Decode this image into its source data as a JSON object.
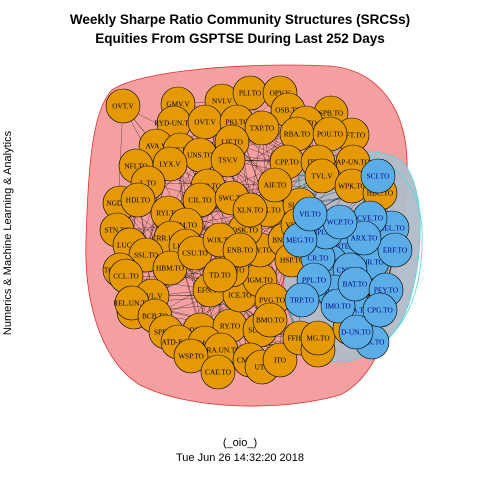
{
  "title_line1": "Weekly Sharpe Ratio Community Structures (SRCSs)",
  "title_line2": "Equities From GSPTSE During Last 252 Days",
  "ylabel": "Numerics & Machine Learning & Analytics",
  "footer_line1": "(_oio_)",
  "footer_line2": "Tue Jun 26 14:32:20 2018",
  "colors": {
    "community1_fill": "#f4a0a0",
    "community1_stroke": "#e03030",
    "community2_fill": "#b0bcc8",
    "community2_stroke": "#4ed8e0",
    "node_orange": "#e59a05",
    "node_blue": "#5aade6",
    "edge": "#000000",
    "orange_label": "#000000",
    "blue_label": "#00008b"
  },
  "nodes_orange": [
    "OVT.V",
    "GMV.V",
    "NVI.V",
    "PLI.TO",
    "OPV.V",
    "OSB.TO",
    "SPB.TO",
    "RYD-UN.TO",
    "OVT.V",
    "PKI.TO",
    "TXP.TO",
    "GC.TO",
    "WFT.TO",
    "AVA.V",
    "EIF.TO",
    "LIF.TO",
    "RBA.TO",
    "POU.TO",
    "UNS.TO",
    "TSV.V",
    "CPP.TO",
    "ITP.TO",
    "NFI.TO",
    "LYX.V",
    "AP-UN.TO",
    "TVL.V",
    "L.TO",
    "KTO.TO",
    "WPK.TO",
    "HBC.TO",
    "NGD.TO",
    "HDI.TO",
    "CIL.TO",
    "SWC.TO",
    "STN.TO",
    "RYI.TO",
    "EFX.TO",
    "FM.TO",
    "CRR.UN.TO",
    "LUC.TO",
    "SSL.TO",
    "LUN.TO",
    "TCL.A.TO",
    "HBM.TO",
    "CCL.TO",
    "CSU.TO",
    "RVL.V",
    "RCE.TO",
    "REL.UN.TO",
    "BCB.TO",
    "SPE.TO",
    "DL.TO",
    "ATD-B.TO",
    "RY.TO",
    "SLF.TO",
    "CM.TO",
    "DRA.UN.TO",
    "WSP.TO",
    "CAE.TO",
    "CMF.TO",
    "UTO",
    "ITO",
    "FFH.TO",
    "KIV.V",
    "MG.TO",
    "AL.TO",
    "EFN.TO",
    "ICE.TO",
    "IGM.TO",
    "GSY.TO",
    "FSY.TO",
    "OSK.TO",
    "BNS.TO",
    "HSP.TO",
    "PVG.TO",
    "WJX.TO",
    "XLN.TO",
    "SLS.TO",
    "VET.TO",
    "AIF.TO",
    "ENB.TO",
    "TD.TO",
    "BMO.TO"
  ],
  "nodes_blue": [
    "SCI.TO",
    "KEL.TO",
    "CVE.TO",
    "BTE.TO",
    "TOU.TO",
    "BIR.TO",
    "CNQ.TO",
    "SU.TO",
    "ECA.TO",
    "IMO.TO",
    "PSK.TO",
    "D-UN.TO",
    "BAT.TO",
    "CR.TO",
    "PPL.TO",
    "TRP.TO",
    "IPL.TO",
    "MEG.TO",
    "ERF.TO",
    "PEY.TO",
    "ARX.TO",
    "WCP.TO",
    "VII.TO",
    "CPG.TO"
  ]
}
